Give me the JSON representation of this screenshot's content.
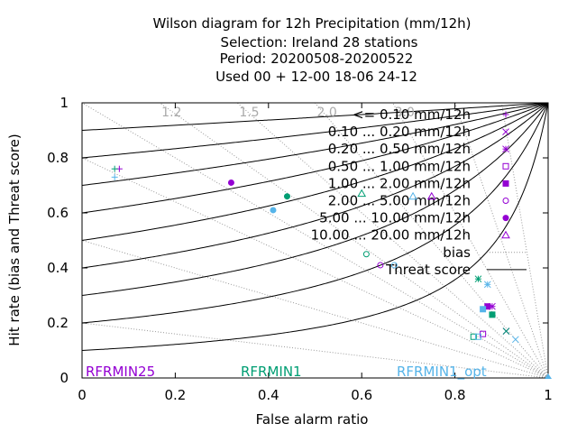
{
  "chart_data": {
    "type": "scatter",
    "title_lines": [
      "Wilson diagram  for 12h Precipitation (mm/12h)",
      "Selection: Ireland      28 stations",
      "Period: 20200508-20200522",
      "Used  00 + 12-00 18-06 24-12"
    ],
    "xlabel": "False alarm ratio",
    "ylabel": "Hit rate (bias and Threat score)",
    "xlim": [
      0,
      1
    ],
    "ylim": [
      0,
      1
    ],
    "x_ticks": [
      "0",
      "0.2",
      "0.4",
      "0.6",
      "0.8",
      "1"
    ],
    "y_ticks": [
      "0",
      "0.2",
      "0.4",
      "0.6",
      "0.8",
      "1"
    ],
    "bias_lines": [
      {
        "value": 1.2,
        "label": "1.2"
      },
      {
        "value": 1.5,
        "label": "1.5"
      },
      {
        "value": 2.0,
        "label": "2.0"
      },
      {
        "value": 3.0,
        "label": "3.0"
      },
      {
        "value": 5.0,
        "label": ""
      },
      {
        "value": 10.0,
        "label": ""
      },
      {
        "value": 0.2,
        "label": ""
      },
      {
        "value": 0.5,
        "label": ""
      },
      {
        "value": 0.8,
        "label": ""
      },
      {
        "value": 1.0,
        "label": ""
      }
    ],
    "threat_score_lines": [
      0.1,
      0.2,
      0.3,
      0.4,
      0.5,
      0.6,
      0.7,
      0.8,
      0.9
    ],
    "legend": [
      {
        "label": "<= 0.10 mm/12h",
        "marker": "plus"
      },
      {
        "label": "0.10 ... 0.20 mm/12h",
        "marker": "cross"
      },
      {
        "label": "0.20 ... 0.50 mm/12h",
        "marker": "star"
      },
      {
        "label": "0.50 ... 1.00 mm/12h",
        "marker": "square-open"
      },
      {
        "label": "1.00 ... 2.00 mm/12h",
        "marker": "square"
      },
      {
        "label": "2.00 ... 5.00 mm/12h",
        "marker": "circle-open"
      },
      {
        "label": "5.00 ... 10.00 mm/12h",
        "marker": "circle"
      },
      {
        "label": "10.00 ... 20.00 mm/12h",
        "marker": "triangle-open"
      },
      {
        "label": "bias",
        "marker": "dotted-line"
      },
      {
        "label": "Threat score",
        "marker": "solid-line"
      }
    ],
    "series": [
      {
        "name": "RFRMIN25",
        "color": "#9400d3",
        "points": [
          {
            "class": 0,
            "x": 0.08,
            "y": 0.76
          },
          {
            "class": 1,
            "x": 0.91,
            "y": 0.17
          },
          {
            "class": 2,
            "x": 0.88,
            "y": 0.26
          },
          {
            "class": 3,
            "x": 0.86,
            "y": 0.16
          },
          {
            "class": 4,
            "x": 0.87,
            "y": 0.26
          },
          {
            "class": 5,
            "x": 0.64,
            "y": 0.41
          },
          {
            "class": 6,
            "x": 0.32,
            "y": 0.71
          },
          {
            "class": 7,
            "x": 0.75,
            "y": 0.66
          }
        ]
      },
      {
        "name": "RFRMIN1",
        "color": "#009e73",
        "points": [
          {
            "class": 0,
            "x": 0.07,
            "y": 0.76
          },
          {
            "class": 1,
            "x": 0.91,
            "y": 0.17
          },
          {
            "class": 2,
            "x": 0.85,
            "y": 0.36
          },
          {
            "class": 3,
            "x": 0.84,
            "y": 0.15
          },
          {
            "class": 4,
            "x": 0.88,
            "y": 0.23
          },
          {
            "class": 5,
            "x": 0.61,
            "y": 0.45
          },
          {
            "class": 6,
            "x": 0.44,
            "y": 0.66
          },
          {
            "class": 7,
            "x": 0.6,
            "y": 0.67
          }
        ]
      },
      {
        "name": "RFRMIN1_opt",
        "color": "#56b4e9",
        "points": [
          {
            "class": 0,
            "x": 0.07,
            "y": 0.73
          },
          {
            "class": 1,
            "x": 0.93,
            "y": 0.14
          },
          {
            "class": 2,
            "x": 0.87,
            "y": 0.34
          },
          {
            "class": 3,
            "x": 0.85,
            "y": 0.15
          },
          {
            "class": 4,
            "x": 0.86,
            "y": 0.25
          },
          {
            "class": 5,
            "x": 0.67,
            "y": 0.41
          },
          {
            "class": 6,
            "x": 0.41,
            "y": 0.61
          },
          {
            "class": 7,
            "x": 0.71,
            "y": 0.66
          }
        ]
      }
    ],
    "model_labels": [
      {
        "text": "RFRMIN25",
        "color": "#9400d3"
      },
      {
        "text": "RFRMIN1",
        "color": "#009e73"
      },
      {
        "text": "RFRMIN1_opt",
        "color": "#56b4e9"
      }
    ],
    "grid": false,
    "legend_placement": "top-right"
  }
}
